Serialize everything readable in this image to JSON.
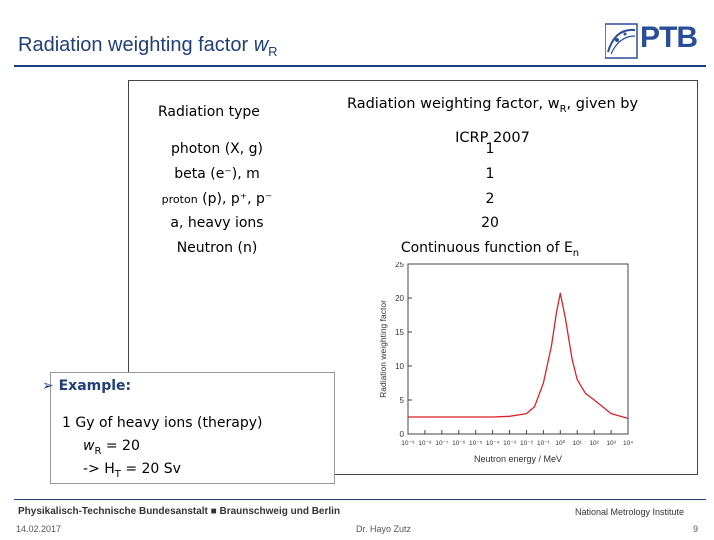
{
  "slide": {
    "title": "Radiation weighting factor",
    "title_symbol": "w",
    "title_sub": "R",
    "logo_text": "PTB"
  },
  "table": {
    "col1_header": "Radiation type",
    "col2_header_line1": "Radiation weighting factor, w",
    "col2_header_sub": "R",
    "col2_header_tail": ", given by",
    "col2_header_line2": "ICRP 2007",
    "rows": [
      {
        "type": "photon (X, g)",
        "factor": "1"
      },
      {
        "type": "beta (e⁻), m",
        "factor": "1"
      },
      {
        "type_small": "proton",
        "type": " (p), p⁺, p⁻",
        "factor": "2"
      },
      {
        "type": "a, heavy ions",
        "factor": "20"
      },
      {
        "type": "Neutron (n)",
        "factor": "Continuous function of E",
        "factor_sub": "n"
      }
    ]
  },
  "chart_data": {
    "type": "line",
    "xlabel": "Neutron energy / MeV",
    "ylabel": "Radiation weighting factor",
    "x_scale": "log",
    "xlim": [
      1e-09,
      10000.0
    ],
    "ylim": [
      0,
      25
    ],
    "x_tick_labels": [
      "10⁻⁹",
      "10⁻⁸",
      "10⁻⁷",
      "10⁻⁶",
      "10⁻⁵",
      "10⁻⁴",
      "10⁻³",
      "10⁻²",
      "10⁻¹",
      "10⁰",
      "10¹",
      "10²",
      "10³",
      "10⁴"
    ],
    "y_tick_labels": [
      "0",
      "5",
      "10",
      "15",
      "20",
      "25"
    ],
    "series_color": "#d8232a",
    "series": [
      {
        "x": [
          1e-09,
          1e-08,
          1e-07,
          1e-06,
          1e-05,
          0.0001,
          0.001,
          0.01,
          0.03,
          0.1,
          0.3,
          0.6,
          1,
          2,
          5,
          10,
          30,
          100,
          1000,
          10000
        ],
        "y": [
          2.5,
          2.5,
          2.5,
          2.5,
          2.5,
          2.5,
          2.6,
          3.0,
          4.0,
          7.5,
          13,
          18,
          20.7,
          17,
          11,
          8,
          6,
          5,
          3,
          2.3
        ]
      }
    ]
  },
  "example": {
    "heading": "Example:",
    "line1": "1 Gy of heavy ions (therapy)",
    "line2_prefix": "w",
    "line2_sub": "R",
    "line2_tail": " = 20",
    "line3_prefix": "-> H",
    "line3_sub": "T",
    "line3_tail": " = 20 Sv"
  },
  "footer": {
    "left": "Physikalisch-Technische Bundesanstalt ■ Braunschweig und Berlin",
    "right": "National Metrology Institute",
    "date": "14.02.2017",
    "author": "Dr. Hayo Zutz",
    "page": "9"
  }
}
